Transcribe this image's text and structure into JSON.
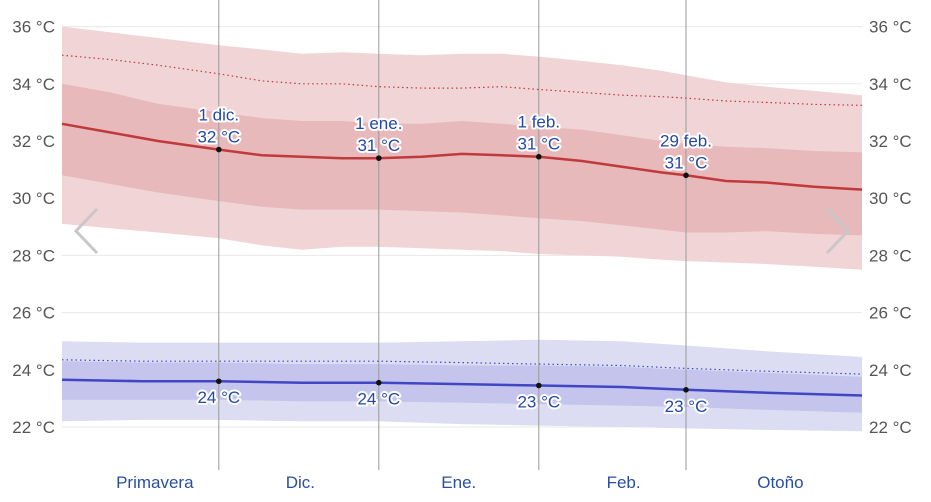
{
  "chart_data": {
    "type": "area",
    "y_axis": {
      "ticks": [
        22,
        24,
        26,
        28,
        30,
        32,
        34,
        36
      ],
      "tick_labels": [
        "22 °C",
        "24 °C",
        "26 °C",
        "28 °C",
        "30 °C",
        "32 °C",
        "34 °C",
        "36 °C"
      ],
      "ylim": [
        21.2,
        36.6
      ],
      "grid": true,
      "mirrored_right": true
    },
    "x_axis": {
      "domain": [
        0,
        1
      ],
      "season_labels": [
        "Primavera",
        "Dic.",
        "Ene.",
        "Feb.",
        "Otoño"
      ],
      "season_centers": [
        0.116,
        0.298,
        0.496,
        0.702,
        0.898
      ],
      "month_boundaries": [
        0.196,
        0.396,
        0.596,
        0.78
      ]
    },
    "high": {
      "color": "#c0393b",
      "x": [
        0,
        0.06,
        0.12,
        0.196,
        0.25,
        0.3,
        0.35,
        0.396,
        0.45,
        0.5,
        0.55,
        0.596,
        0.65,
        0.7,
        0.75,
        0.78,
        0.83,
        0.88,
        0.94,
        1
      ],
      "avg": [
        32.6,
        32.3,
        32.0,
        31.7,
        31.5,
        31.45,
        31.4,
        31.4,
        31.45,
        31.55,
        31.5,
        31.45,
        31.3,
        31.1,
        30.9,
        30.8,
        30.6,
        30.55,
        30.4,
        30.3
      ],
      "p25": [
        30.8,
        30.5,
        30.2,
        29.9,
        29.7,
        29.6,
        29.6,
        29.6,
        29.55,
        29.5,
        29.4,
        29.3,
        29.2,
        29.05,
        28.9,
        28.8,
        28.8,
        28.85,
        28.75,
        28.7
      ],
      "p75": [
        34.0,
        33.7,
        33.3,
        33.0,
        32.8,
        32.7,
        32.7,
        32.6,
        32.6,
        32.7,
        32.6,
        32.5,
        32.4,
        32.2,
        32.0,
        31.9,
        31.8,
        31.75,
        31.65,
        31.6
      ],
      "p10": [
        29.1,
        28.95,
        28.8,
        28.6,
        28.35,
        28.2,
        28.3,
        28.3,
        28.25,
        28.2,
        28.15,
        28.05,
        28.0,
        27.95,
        27.85,
        27.8,
        27.75,
        27.7,
        27.6,
        27.5
      ],
      "p90": [
        36.0,
        35.8,
        35.6,
        35.35,
        35.2,
        35.05,
        35.1,
        35.05,
        35.0,
        35.05,
        35.05,
        34.95,
        34.8,
        34.65,
        34.45,
        34.3,
        34.05,
        33.9,
        33.75,
        33.6
      ],
      "dotted": [
        35.0,
        34.85,
        34.65,
        34.35,
        34.1,
        34.0,
        34.0,
        33.9,
        33.85,
        33.85,
        33.9,
        33.8,
        33.7,
        33.6,
        33.55,
        33.5,
        33.4,
        33.35,
        33.28,
        33.25
      ]
    },
    "low": {
      "color": "#4046c4",
      "x": [
        0,
        0.1,
        0.196,
        0.3,
        0.396,
        0.5,
        0.596,
        0.7,
        0.78,
        0.88,
        1
      ],
      "avg": [
        23.65,
        23.6,
        23.6,
        23.55,
        23.55,
        23.5,
        23.45,
        23.4,
        23.3,
        23.2,
        23.1
      ],
      "p25": [
        22.95,
        22.95,
        22.95,
        22.9,
        22.9,
        22.85,
        22.8,
        22.75,
        22.7,
        22.6,
        22.5
      ],
      "p75": [
        24.3,
        24.25,
        24.25,
        24.2,
        24.2,
        24.15,
        24.15,
        24.1,
        24.0,
        23.9,
        23.75
      ],
      "p10": [
        22.2,
        22.25,
        22.25,
        22.2,
        22.2,
        22.1,
        22.05,
        22.0,
        21.95,
        21.9,
        21.85
      ],
      "p90": [
        25.0,
        24.95,
        24.95,
        24.95,
        24.95,
        25.0,
        25.05,
        25.0,
        24.85,
        24.65,
        24.45
      ],
      "dotted": [
        24.35,
        24.3,
        24.3,
        24.3,
        24.3,
        24.25,
        24.2,
        24.15,
        24.05,
        23.95,
        23.85
      ]
    },
    "annotations": [
      {
        "x": 0.196,
        "y": 31.7,
        "date": "1 dic.",
        "label": "32 °C",
        "series": "high"
      },
      {
        "x": 0.396,
        "y": 31.4,
        "date": "1 ene.",
        "label": "31 °C",
        "series": "high"
      },
      {
        "x": 0.596,
        "y": 31.45,
        "date": "1 feb.",
        "label": "31 °C",
        "series": "high"
      },
      {
        "x": 0.78,
        "y": 30.8,
        "date": "29 feb.",
        "label": "31 °C",
        "series": "high"
      },
      {
        "x": 0.196,
        "y": 23.6,
        "label": "24 °C",
        "series": "low"
      },
      {
        "x": 0.396,
        "y": 23.55,
        "label": "24 °C",
        "series": "low"
      },
      {
        "x": 0.596,
        "y": 23.45,
        "label": "23 °C",
        "series": "low"
      },
      {
        "x": 0.78,
        "y": 23.3,
        "label": "23 °C",
        "series": "low"
      }
    ],
    "band_colors": {
      "high_outer": "#f1d4d6",
      "high_inner": "#e7b9bb",
      "low_outer": "#dcdcf3",
      "low_inner": "#c4c4ec"
    }
  },
  "navigation": {
    "prev_icon": "chevron-left-icon",
    "next_icon": "chevron-right-icon"
  }
}
